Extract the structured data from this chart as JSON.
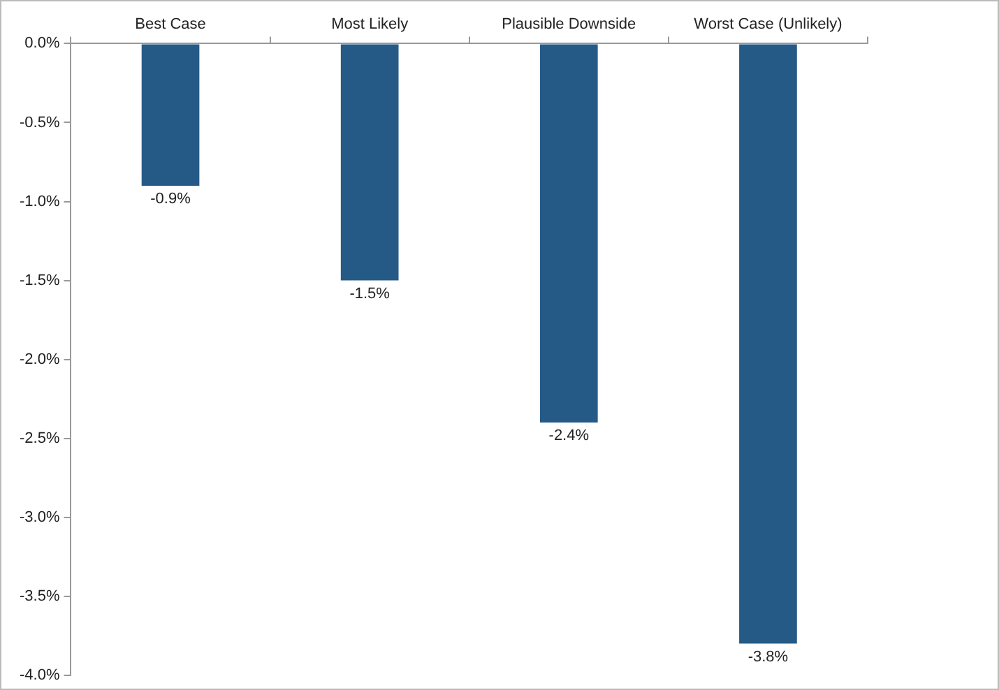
{
  "chart_data": {
    "type": "bar",
    "categories": [
      "Best Case",
      "Most Likely",
      "Plausible Downside",
      "Worst Case (Unlikely)"
    ],
    "values": [
      -0.9,
      -1.5,
      -2.4,
      -3.8
    ],
    "color": "#255a87",
    "value_labels": [
      "-0.9%",
      "-1.5%",
      "-2.4%",
      "-3.8%"
    ],
    "ylim": [
      -4.0,
      0.0
    ],
    "yticks": [
      {
        "value": 0,
        "label": "0.0%"
      },
      {
        "value": -0.5,
        "label": "-0.5%"
      },
      {
        "value": -1,
        "label": "-1.0%"
      },
      {
        "value": -1.5,
        "label": "-1.5%"
      },
      {
        "value": -2,
        "label": "-2.0%"
      },
      {
        "value": -2.5,
        "label": "-2.5%"
      },
      {
        "value": -3,
        "label": "-3.0%"
      },
      {
        "value": -3.5,
        "label": "-3.5%"
      },
      {
        "value": -4,
        "label": "-4.0%"
      }
    ],
    "grid": false,
    "legend": false
  }
}
